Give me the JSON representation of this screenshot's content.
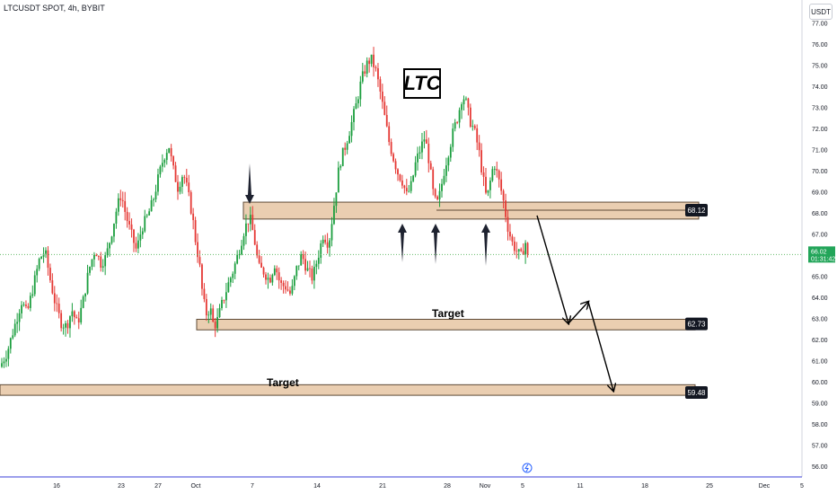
{
  "header": {
    "symbol": "LTCUSDT SPOT, 4h, BYBIT",
    "currency": "USDT"
  },
  "annotations": {
    "title_box": "LTC",
    "target1": "Target",
    "target2": "Target"
  },
  "colors": {
    "up": "#26a69a",
    "up_candle": "#1b9e3e",
    "down": "#e53935",
    "zone_fill": "#e8c9a8",
    "zone_stroke": "#5d4a36",
    "axis_line": "#3b3fd8",
    "price_line": "#2196f3",
    "label_bg": "#131722"
  },
  "chart_data": {
    "type": "candlestick",
    "symbol": "LTCUSDT",
    "interval": "4h",
    "exchange": "BYBIT",
    "y_axis": {
      "min": 56,
      "max": 77,
      "ticks": [
        56,
        57,
        58,
        59,
        60,
        61,
        62,
        63,
        64,
        65,
        66,
        67,
        68,
        69,
        70,
        71,
        72,
        73,
        74,
        75,
        76,
        77
      ],
      "tick_labels": [
        "56.00",
        "57.00",
        "58.00",
        "59.00",
        "60.00",
        "61.00",
        "62.00",
        "63.00",
        "64.00",
        "65.00",
        "66.00",
        "67.00",
        "68.00",
        "69.00",
        "70.00",
        "71.00",
        "72.00",
        "73.00",
        "74.00",
        "75.00",
        "76.00",
        "77.00"
      ]
    },
    "x_axis": {
      "tick_labels": [
        "16",
        "23",
        "27",
        "Oct",
        "7",
        "14",
        "21",
        "28",
        "Nov",
        "5",
        "11",
        "18",
        "25",
        "Dec",
        "5"
      ]
    },
    "price_levels": [
      {
        "label": "68.12",
        "price": 68.12
      },
      {
        "label": "62.73",
        "price": 62.73
      },
      {
        "label": "59.48",
        "price": 59.48
      }
    ],
    "zones": [
      {
        "name": "resistance-zone",
        "low": 67.7,
        "high": 68.5
      },
      {
        "name": "target-zone-1",
        "low": 62.45,
        "high": 62.95
      },
      {
        "name": "target-zone-2",
        "low": 59.35,
        "high": 59.85
      }
    ],
    "current_price": {
      "price": "66.02",
      "countdown": "01:31:42",
      "value": 66.02
    },
    "path_points": [
      {
        "t": 0,
        "p": 60.7
      },
      {
        "t": 8,
        "p": 61.4
      },
      {
        "t": 16,
        "p": 62.6
      },
      {
        "t": 24,
        "p": 63.8
      },
      {
        "t": 30,
        "p": 63.2
      },
      {
        "t": 37,
        "p": 64.5
      },
      {
        "t": 44,
        "p": 65.8
      },
      {
        "t": 50,
        "p": 66.2
      },
      {
        "t": 56,
        "p": 64.8
      },
      {
        "t": 62,
        "p": 63.6
      },
      {
        "t": 68,
        "p": 62.8
      },
      {
        "t": 74,
        "p": 62.6
      },
      {
        "t": 80,
        "p": 63.4
      },
      {
        "t": 86,
        "p": 62.7
      },
      {
        "t": 92,
        "p": 63.7
      },
      {
        "t": 99,
        "p": 65.3
      },
      {
        "t": 106,
        "p": 66.3
      },
      {
        "t": 112,
        "p": 65.6
      },
      {
        "t": 118,
        "p": 65.9
      },
      {
        "t": 124,
        "p": 67.0
      },
      {
        "t": 130,
        "p": 68.2
      },
      {
        "t": 135,
        "p": 68.9
      },
      {
        "t": 140,
        "p": 67.9
      },
      {
        "t": 146,
        "p": 67.0
      },
      {
        "t": 152,
        "p": 66.2
      },
      {
        "t": 158,
        "p": 67.3
      },
      {
        "t": 164,
        "p": 67.8
      },
      {
        "t": 170,
        "p": 68.5
      },
      {
        "t": 176,
        "p": 69.6
      },
      {
        "t": 182,
        "p": 70.6
      },
      {
        "t": 188,
        "p": 71.2
      },
      {
        "t": 192,
        "p": 70.2
      },
      {
        "t": 198,
        "p": 69.2
      },
      {
        "t": 204,
        "p": 69.9
      },
      {
        "t": 209,
        "p": 69.0
      },
      {
        "t": 214,
        "p": 67.9
      },
      {
        "t": 218,
        "p": 66.6
      },
      {
        "t": 222,
        "p": 65.6
      },
      {
        "t": 226,
        "p": 63.9
      },
      {
        "t": 230,
        "p": 63.2
      },
      {
        "t": 234,
        "p": 63.5
      },
      {
        "t": 238,
        "p": 62.6
      },
      {
        "t": 242,
        "p": 62.9
      },
      {
        "t": 248,
        "p": 63.8
      },
      {
        "t": 254,
        "p": 64.6
      },
      {
        "t": 260,
        "p": 65.3
      },
      {
        "t": 266,
        "p": 66.2
      },
      {
        "t": 272,
        "p": 67.2
      },
      {
        "t": 278,
        "p": 67.8
      },
      {
        "t": 283,
        "p": 66.8
      },
      {
        "t": 288,
        "p": 65.4
      },
      {
        "t": 294,
        "p": 65.2
      },
      {
        "t": 300,
        "p": 64.8
      },
      {
        "t": 306,
        "p": 65.6
      },
      {
        "t": 312,
        "p": 64.6
      },
      {
        "t": 318,
        "p": 64.5
      },
      {
        "t": 324,
        "p": 64.1
      },
      {
        "t": 330,
        "p": 65.3
      },
      {
        "t": 336,
        "p": 66.0
      },
      {
        "t": 342,
        "p": 65.3
      },
      {
        "t": 348,
        "p": 64.9
      },
      {
        "t": 354,
        "p": 65.9
      },
      {
        "t": 360,
        "p": 67.0
      },
      {
        "t": 366,
        "p": 66.5
      },
      {
        "t": 372,
        "p": 68.4
      },
      {
        "t": 378,
        "p": 70.3
      },
      {
        "t": 384,
        "p": 71.1
      },
      {
        "t": 390,
        "p": 72.0
      },
      {
        "t": 396,
        "p": 73.0
      },
      {
        "t": 402,
        "p": 74.2
      },
      {
        "t": 408,
        "p": 75.0
      },
      {
        "t": 413,
        "p": 75.3
      },
      {
        "t": 418,
        "p": 74.8
      },
      {
        "t": 423,
        "p": 73.8
      },
      {
        "t": 428,
        "p": 72.6
      },
      {
        "t": 433,
        "p": 71.4
      },
      {
        "t": 438,
        "p": 70.6
      },
      {
        "t": 443,
        "p": 69.9
      },
      {
        "t": 448,
        "p": 69.5
      },
      {
        "t": 453,
        "p": 68.8
      },
      {
        "t": 458,
        "p": 69.3
      },
      {
        "t": 463,
        "p": 70.4
      },
      {
        "t": 468,
        "p": 71.0
      },
      {
        "t": 473,
        "p": 71.6
      },
      {
        "t": 478,
        "p": 70.4
      },
      {
        "t": 482,
        "p": 69.0
      },
      {
        "t": 486,
        "p": 68.3
      },
      {
        "t": 490,
        "p": 68.9
      },
      {
        "t": 495,
        "p": 70.1
      },
      {
        "t": 500,
        "p": 71.0
      },
      {
        "t": 505,
        "p": 71.9
      },
      {
        "t": 510,
        "p": 72.6
      },
      {
        "t": 515,
        "p": 73.6
      },
      {
        "t": 519,
        "p": 73.2
      },
      {
        "t": 523,
        "p": 72.4
      },
      {
        "t": 528,
        "p": 71.9
      },
      {
        "t": 533,
        "p": 71.0
      },
      {
        "t": 538,
        "p": 69.6
      },
      {
        "t": 542,
        "p": 68.6
      },
      {
        "t": 546,
        "p": 69.5
      },
      {
        "t": 550,
        "p": 70.4
      },
      {
        "t": 555,
        "p": 69.6
      },
      {
        "t": 560,
        "p": 68.7
      },
      {
        "t": 565,
        "p": 67.4
      },
      {
        "t": 570,
        "p": 66.6
      },
      {
        "t": 575,
        "p": 66.2
      },
      {
        "t": 580,
        "p": 65.9
      },
      {
        "t": 585,
        "p": 66.6
      },
      {
        "t": 589,
        "p": 66.02
      }
    ]
  }
}
